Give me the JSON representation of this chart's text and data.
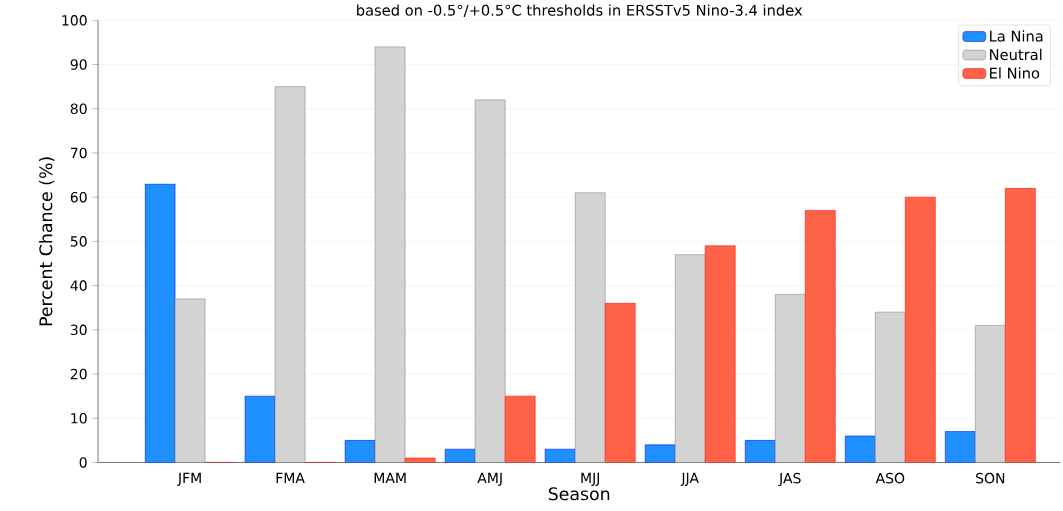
{
  "chart_data": {
    "type": "bar",
    "title": "based on -0.5°/+0.5°C thresholds in ERSSTv5 Nino-3.4 index",
    "xlabel": "Season",
    "ylabel": "Percent Chance (%)",
    "categories": [
      "JFM",
      "FMA",
      "MAM",
      "AMJ",
      "MJJ",
      "JJA",
      "JAS",
      "ASO",
      "SON"
    ],
    "series": [
      {
        "name": "La Nina",
        "color": "#1e90ff",
        "values": [
          63,
          15,
          5,
          3,
          3,
          4,
          5,
          6,
          7
        ]
      },
      {
        "name": "Neutral",
        "color": "#d3d3d3",
        "values": [
          37,
          85,
          94,
          82,
          61,
          47,
          38,
          34,
          31
        ]
      },
      {
        "name": "El Nino",
        "color": "#ff6347",
        "values": [
          0,
          0,
          1,
          15,
          36,
          49,
          57,
          60,
          62
        ]
      }
    ],
    "ylim": [
      0,
      100
    ],
    "yticks": [
      0,
      10,
      20,
      30,
      40,
      50,
      60,
      70,
      80,
      90,
      100
    ],
    "grid": "y",
    "legend": "top right"
  }
}
